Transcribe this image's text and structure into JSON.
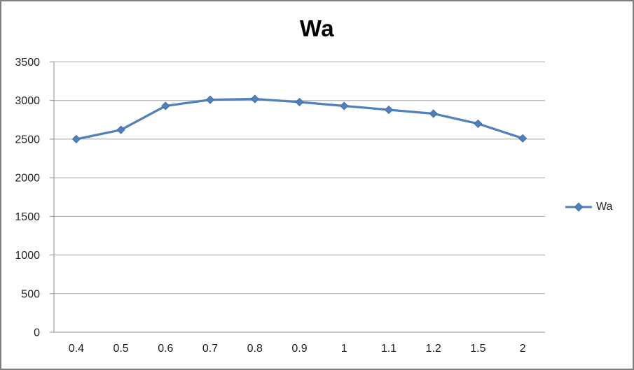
{
  "chart_data": {
    "type": "line",
    "title": "Wa",
    "categories": [
      "0.4",
      "0.5",
      "0.6",
      "0.7",
      "0.8",
      "0.9",
      "1",
      "1.1",
      "1.2",
      "1.5",
      "2"
    ],
    "series": [
      {
        "name": "Wa",
        "values": [
          2500,
          2620,
          2930,
          3010,
          3020,
          2980,
          2930,
          2880,
          2830,
          2700,
          2510
        ],
        "color": "#4F81BD",
        "marker": "diamond"
      }
    ],
    "xlabel": "",
    "ylabel": "",
    "ylim": [
      0,
      3500
    ],
    "ytick_step": 500,
    "ytick_labels": [
      "0",
      "500",
      "1000",
      "1500",
      "2000",
      "2500",
      "3000",
      "3500"
    ],
    "grid": "horizontal-major",
    "legend_position": "right"
  },
  "colors": {
    "series": "#4F81BD",
    "marker_edge": "#3F6BA5",
    "gridline": "#A6A6A6",
    "axis": "#8C8C8C",
    "tick_text": "#1f1f1f",
    "title_text": "#000000",
    "frame_border": "#7f7f7f",
    "background": "#ffffff"
  }
}
